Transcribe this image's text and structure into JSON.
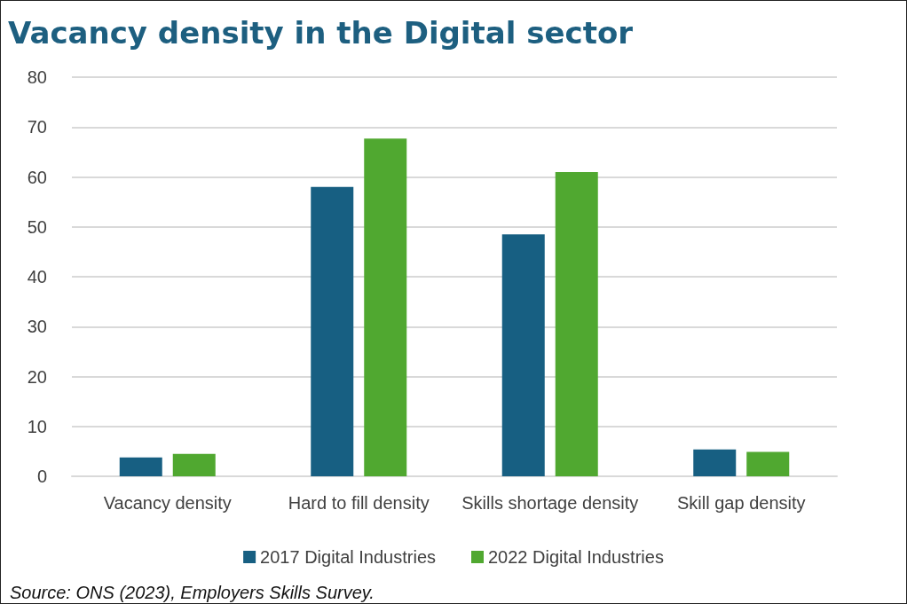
{
  "chart_data": {
    "type": "bar",
    "title": "Vacancy density in the Digital sector",
    "categories": [
      "Vacancy density",
      "Hard to fill density",
      "Skills shortage density",
      "Skill gap density"
    ],
    "series": [
      {
        "name": "2017 Digital Industries",
        "color": "#175f82",
        "values": [
          3.8,
          58.0,
          48.5,
          5.4
        ]
      },
      {
        "name": "2022 Digital Industries",
        "color": "#50a830",
        "values": [
          4.5,
          67.7,
          61.0,
          4.9
        ]
      }
    ],
    "ylim": [
      0,
      80
    ],
    "yticks": [
      0,
      10,
      20,
      30,
      40,
      50,
      60,
      70,
      80
    ],
    "grid": "y",
    "legend": "bottom",
    "annotations": [
      "Source: ONS (2023), Employers Skills Survey."
    ]
  }
}
